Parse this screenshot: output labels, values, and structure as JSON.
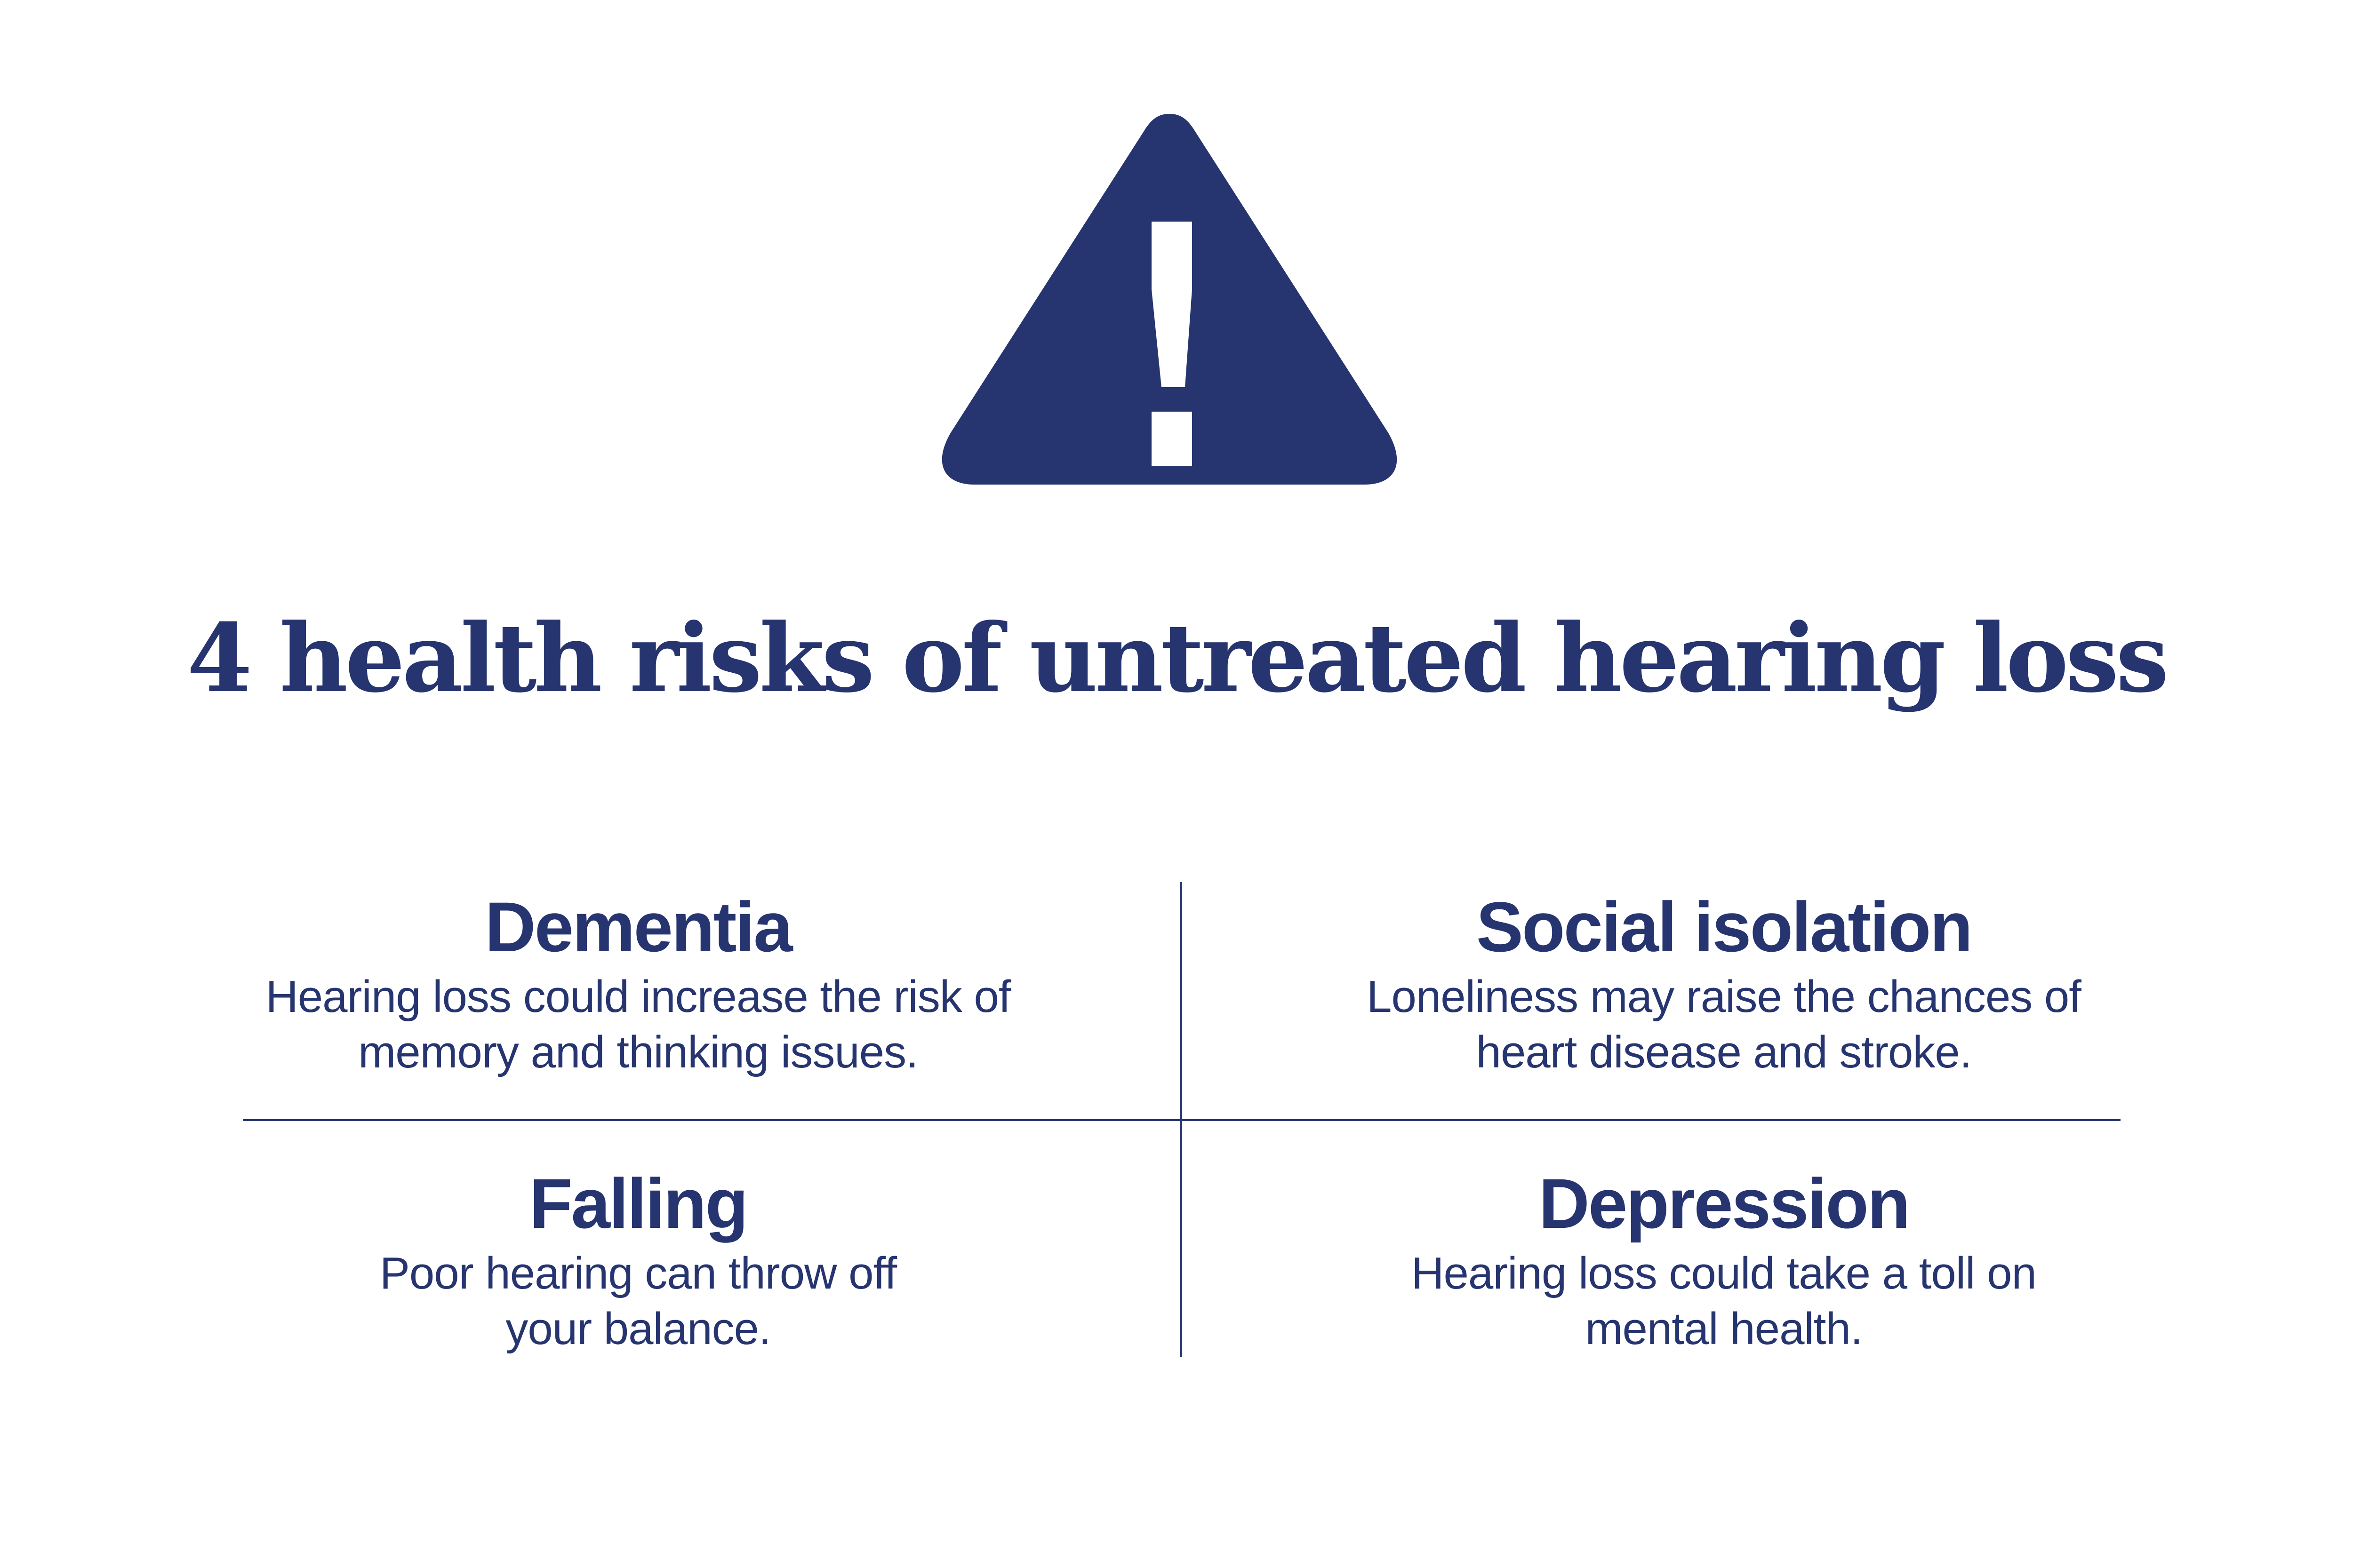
{
  "colors": {
    "primary": "#263470",
    "background": "#ffffff"
  },
  "icon": "warning-triangle-exclamation-icon",
  "title": "4 health risks of untreated hearing loss",
  "risks": [
    {
      "heading": "Dementia",
      "line1": "Hearing loss could increase the risk of",
      "line2": "memory and thinking issues."
    },
    {
      "heading": "Social isolation",
      "line1": "Loneliness may raise the chances of",
      "line2": "heart disease and stroke."
    },
    {
      "heading": "Falling",
      "line1": "Poor hearing can throw off",
      "line2": "your balance."
    },
    {
      "heading": "Depression",
      "line1": "Hearing loss could take a toll on",
      "line2": "mental health."
    }
  ]
}
